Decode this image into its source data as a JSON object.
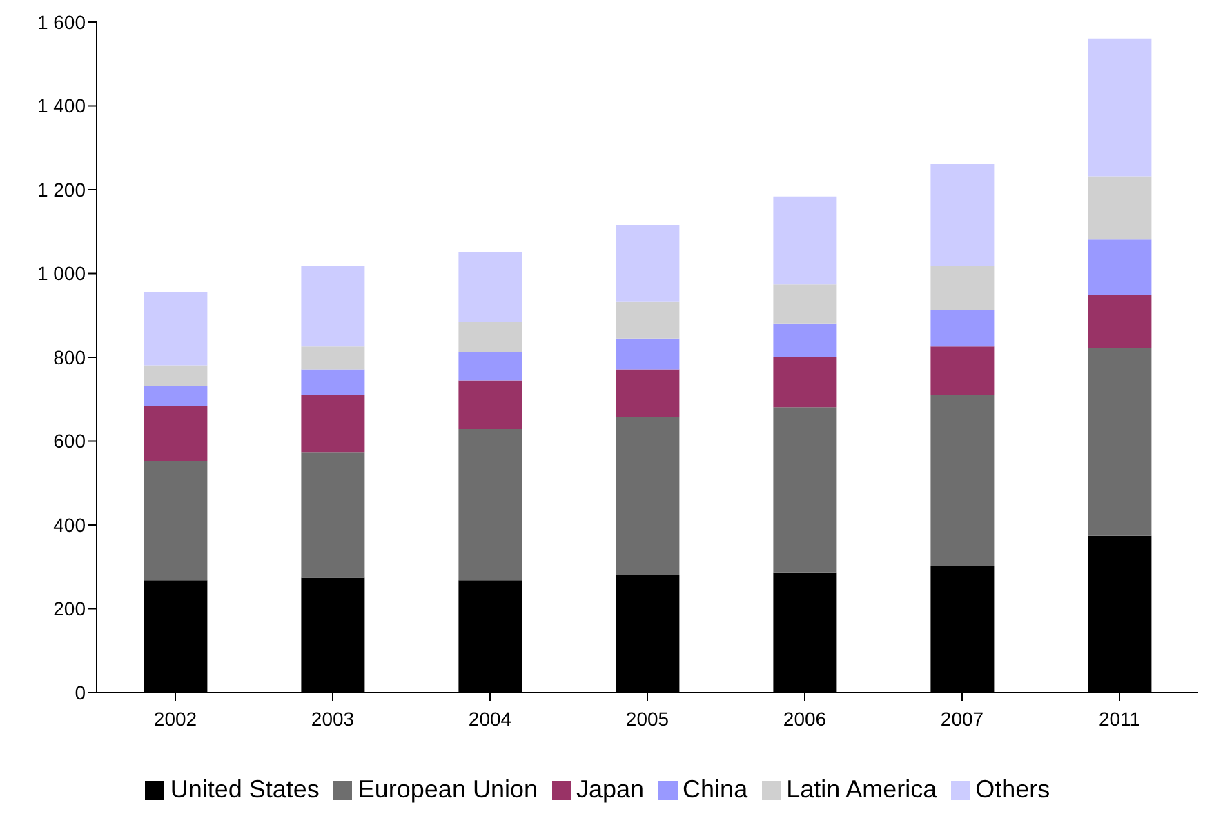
{
  "chart_data": {
    "type": "bar",
    "stacked": true,
    "categories": [
      "2002",
      "2003",
      "2004",
      "2005",
      "2006",
      "2007",
      "2011"
    ],
    "series": [
      {
        "name": "United States",
        "color": "#000000",
        "values": [
          268,
          274,
          268,
          281,
          287,
          303,
          374
        ]
      },
      {
        "name": "European Union",
        "color": "#6e6e6e",
        "values": [
          284,
          300,
          361,
          377,
          394,
          407,
          449
        ]
      },
      {
        "name": "Japan",
        "color": "#993366",
        "values": [
          132,
          136,
          116,
          113,
          119,
          116,
          125
        ]
      },
      {
        "name": "China",
        "color": "#9999ff",
        "values": [
          48,
          61,
          68,
          74,
          81,
          87,
          133
        ]
      },
      {
        "name": "Latin America",
        "color": "#d0d0d0",
        "values": [
          49,
          55,
          71,
          87,
          93,
          106,
          151
        ]
      },
      {
        "name": "Others",
        "color": "#ccccff",
        "values": [
          174,
          193,
          168,
          184,
          210,
          242,
          329
        ]
      }
    ],
    "ylim": [
      0,
      1600
    ],
    "yticks": [
      0,
      200,
      400,
      600,
      800,
      {
        "value": 1000,
        "label": "1 000"
      },
      {
        "value": 1200,
        "label": "1 200"
      },
      {
        "value": 1400,
        "label": "1 400"
      },
      {
        "value": 1600,
        "label": "1 600"
      }
    ],
    "grid": false,
    "legend": "bottom"
  }
}
